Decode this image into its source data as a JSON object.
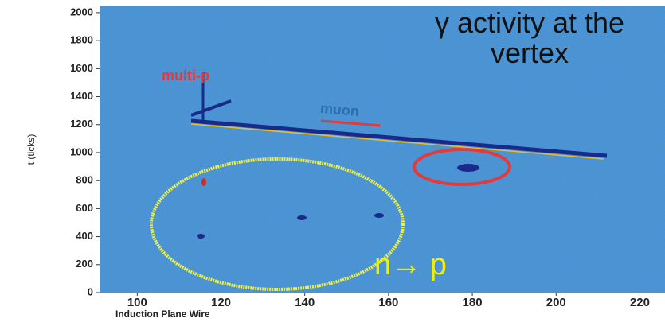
{
  "chart_data": {
    "type": "image",
    "xlabel": "Induction Plane Wire",
    "ylabel": "t (ticks)",
    "xlim": [
      91,
      226
    ],
    "ylim": [
      0,
      2045
    ],
    "xticks": [
      100,
      120,
      140,
      160,
      180,
      200,
      220
    ],
    "yticks": [
      0,
      200,
      400,
      600,
      800,
      1000,
      1200,
      1400,
      1600,
      1800,
      2000
    ],
    "color": "#3f8fd6",
    "annotations": [
      "γ activity at the vertex",
      "multi-p",
      "muon",
      "n→ p"
    ]
  }
}
